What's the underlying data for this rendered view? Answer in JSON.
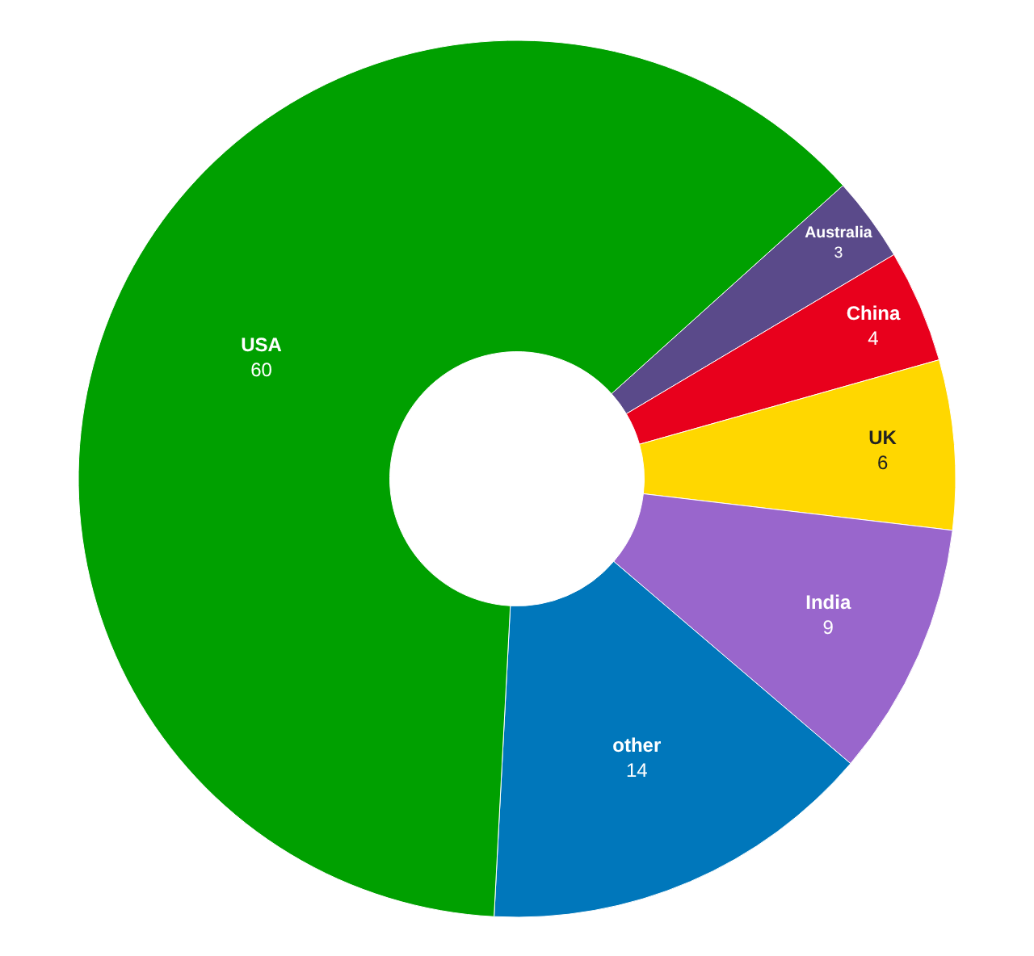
{
  "chart_data": {
    "type": "donut",
    "categories": [
      "Australia",
      "China",
      "UK",
      "India",
      "other",
      "USA"
    ],
    "values": [
      3,
      4,
      6,
      9,
      14,
      60
    ],
    "colors": [
      "#5a4a8a",
      "#e8001c",
      "#ffd700",
      "#9966cc",
      "#0077bb",
      "#00a000"
    ],
    "data_labels": true,
    "legend": false
  }
}
